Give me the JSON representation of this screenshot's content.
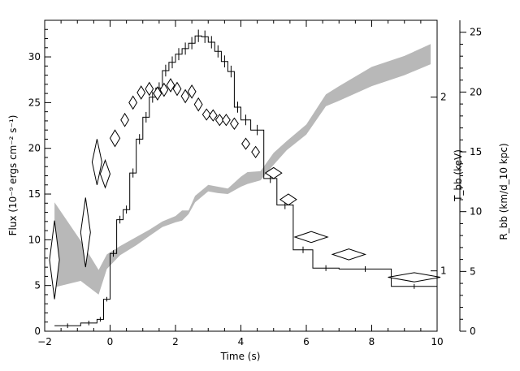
{
  "chart_data": {
    "type": "scatter",
    "xlabel": "Time (s)",
    "ylabel_left": "Flux (10⁻⁹ ergs cm⁻² s⁻¹)",
    "ylabel_right_inner": "T_bb (keV)",
    "ylabel_right_outer": "R_bb (km/d_10 kpc)",
    "xlim": [
      -2,
      10
    ],
    "ylim_left": [
      0,
      34
    ],
    "ylim_right_outer": [
      0,
      26
    ],
    "x_ticks": [
      -2,
      0,
      2,
      4,
      6,
      8,
      10
    ],
    "y_ticks_left": [
      0,
      5,
      10,
      15,
      20,
      25,
      30
    ],
    "y_ticks_right_outer": [
      0,
      5,
      10,
      15,
      20,
      25
    ],
    "y_ticks_right_inner": [
      {
        "label": "1",
        "flux_equiv": 6.6
      },
      {
        "label": "2",
        "flux_equiv": 25.6
      }
    ],
    "flux_histogram": [
      {
        "x0": -1.7,
        "x1": -0.9,
        "y": 0.6
      },
      {
        "x0": -0.9,
        "x1": -0.4,
        "y": 0.9
      },
      {
        "x0": -0.4,
        "x1": -0.2,
        "y": 1.3
      },
      {
        "x0": -0.2,
        "x1": 0.0,
        "y": 3.5
      },
      {
        "x0": 0.0,
        "x1": 0.2,
        "y": 8.5
      },
      {
        "x0": 0.2,
        "x1": 0.4,
        "y": 12.2
      },
      {
        "x0": 0.4,
        "x1": 0.6,
        "y": 13.3
      },
      {
        "x0": 0.6,
        "x1": 0.8,
        "y": 17.3
      },
      {
        "x0": 0.8,
        "x1": 1.0,
        "y": 21.0
      },
      {
        "x0": 1.0,
        "x1": 1.2,
        "y": 23.4
      },
      {
        "x0": 1.2,
        "x1": 1.4,
        "y": 25.6
      },
      {
        "x0": 1.4,
        "x1": 1.6,
        "y": 26.6
      },
      {
        "x0": 1.6,
        "x1": 1.8,
        "y": 28.5
      },
      {
        "x0": 1.8,
        "x1": 2.0,
        "y": 29.4
      },
      {
        "x0": 2.0,
        "x1": 2.2,
        "y": 30.3
      },
      {
        "x0": 2.2,
        "x1": 2.4,
        "y": 30.9
      },
      {
        "x0": 2.4,
        "x1": 2.6,
        "y": 31.5
      },
      {
        "x0": 2.6,
        "x1": 2.8,
        "y": 32.3
      },
      {
        "x0": 2.8,
        "x1": 3.0,
        "y": 32.2
      },
      {
        "x0": 3.0,
        "x1": 3.2,
        "y": 31.6
      },
      {
        "x0": 3.2,
        "x1": 3.4,
        "y": 30.6
      },
      {
        "x0": 3.4,
        "x1": 3.6,
        "y": 29.5
      },
      {
        "x0": 3.6,
        "x1": 3.8,
        "y": 28.4
      },
      {
        "x0": 3.8,
        "x1": 4.0,
        "y": 24.5
      },
      {
        "x0": 4.0,
        "x1": 4.3,
        "y": 23.1
      },
      {
        "x0": 4.3,
        "x1": 4.7,
        "y": 22.0
      },
      {
        "x0": 4.7,
        "x1": 5.1,
        "y": 16.7
      },
      {
        "x0": 5.1,
        "x1": 5.6,
        "y": 13.8
      },
      {
        "x0": 5.6,
        "x1": 6.2,
        "y": 8.9
      },
      {
        "x0": 6.2,
        "x1": 7.0,
        "y": 6.9
      },
      {
        "x0": 7.0,
        "x1": 8.6,
        "y": 6.8
      },
      {
        "x0": 8.6,
        "x1": 10.0,
        "y": 4.9
      }
    ],
    "temperature_points": [
      {
        "x": -1.7,
        "y": 7.8,
        "dx": 0.15,
        "dy": 4.3
      },
      {
        "x": -0.75,
        "y": 10.8,
        "dx": 0.15,
        "dy": 3.8
      },
      {
        "x": -0.4,
        "y": 18.5,
        "dx": 0.15,
        "dy": 2.5
      },
      {
        "x": -0.15,
        "y": 17.2,
        "dx": 0.15,
        "dy": 1.5
      },
      {
        "x": 0.15,
        "y": 21.1,
        "dx": 0.15,
        "dy": 0.9
      },
      {
        "x": 0.45,
        "y": 23.1,
        "dx": 0.12,
        "dy": 0.7
      },
      {
        "x": 0.7,
        "y": 25.0,
        "dx": 0.12,
        "dy": 0.7
      },
      {
        "x": 0.95,
        "y": 26.1,
        "dx": 0.12,
        "dy": 0.7
      },
      {
        "x": 1.2,
        "y": 26.5,
        "dx": 0.12,
        "dy": 0.7
      },
      {
        "x": 1.45,
        "y": 26.0,
        "dx": 0.12,
        "dy": 0.7
      },
      {
        "x": 1.65,
        "y": 26.4,
        "dx": 0.12,
        "dy": 0.7
      },
      {
        "x": 1.85,
        "y": 26.9,
        "dx": 0.12,
        "dy": 0.7
      },
      {
        "x": 2.05,
        "y": 26.5,
        "dx": 0.12,
        "dy": 0.7
      },
      {
        "x": 2.3,
        "y": 25.7,
        "dx": 0.12,
        "dy": 0.7
      },
      {
        "x": 2.5,
        "y": 26.2,
        "dx": 0.12,
        "dy": 0.7
      },
      {
        "x": 2.7,
        "y": 24.8,
        "dx": 0.12,
        "dy": 0.7
      },
      {
        "x": 2.95,
        "y": 23.7,
        "dx": 0.12,
        "dy": 0.6
      },
      {
        "x": 3.15,
        "y": 23.6,
        "dx": 0.12,
        "dy": 0.6
      },
      {
        "x": 3.35,
        "y": 23.1,
        "dx": 0.12,
        "dy": 0.6
      },
      {
        "x": 3.55,
        "y": 23.1,
        "dx": 0.12,
        "dy": 0.6
      },
      {
        "x": 3.8,
        "y": 22.7,
        "dx": 0.12,
        "dy": 0.6
      },
      {
        "x": 4.15,
        "y": 20.5,
        "dx": 0.12,
        "dy": 0.6
      },
      {
        "x": 4.45,
        "y": 19.6,
        "dx": 0.12,
        "dy": 0.6
      },
      {
        "x": 5.0,
        "y": 17.3,
        "dx": 0.25,
        "dy": 0.6
      },
      {
        "x": 5.45,
        "y": 14.4,
        "dx": 0.25,
        "dy": 0.6
      },
      {
        "x": 6.15,
        "y": 10.3,
        "dx": 0.5,
        "dy": 0.6
      },
      {
        "x": 7.3,
        "y": 8.4,
        "dx": 0.5,
        "dy": 0.6
      },
      {
        "x": 9.3,
        "y": 5.9,
        "dx": 0.8,
        "dy": 0.5
      }
    ],
    "radius_band": [
      {
        "x": -1.7,
        "lo": 4.8,
        "hi": 14.1
      },
      {
        "x": -0.9,
        "lo": 5.5,
        "hi": 9.9
      },
      {
        "x": -0.35,
        "lo": 4.0,
        "hi": 6.7
      },
      {
        "x": -0.1,
        "lo": 6.8,
        "hi": 8.4
      },
      {
        "x": 0.3,
        "lo": 8.3,
        "hi": 9.3
      },
      {
        "x": 0.8,
        "lo": 9.4,
        "hi": 10.3
      },
      {
        "x": 1.2,
        "lo": 10.4,
        "hi": 11.1
      },
      {
        "x": 1.6,
        "lo": 11.4,
        "hi": 12.0
      },
      {
        "x": 2.0,
        "lo": 11.9,
        "hi": 12.6
      },
      {
        "x": 2.2,
        "lo": 12.1,
        "hi": 13.2
      },
      {
        "x": 2.4,
        "lo": 12.8,
        "hi": 13.2
      },
      {
        "x": 2.6,
        "lo": 14.1,
        "hi": 14.8
      },
      {
        "x": 3.0,
        "lo": 15.3,
        "hi": 16.0
      },
      {
        "x": 3.3,
        "lo": 15.1,
        "hi": 15.8
      },
      {
        "x": 3.6,
        "lo": 15.0,
        "hi": 15.6
      },
      {
        "x": 4.0,
        "lo": 15.8,
        "hi": 16.9
      },
      {
        "x": 4.2,
        "lo": 16.1,
        "hi": 17.4
      },
      {
        "x": 4.6,
        "lo": 16.5,
        "hi": 17.5
      },
      {
        "x": 5.0,
        "lo": 18.2,
        "hi": 19.5
      },
      {
        "x": 5.4,
        "lo": 19.8,
        "hi": 20.8
      },
      {
        "x": 6.0,
        "lo": 21.5,
        "hi": 22.6
      },
      {
        "x": 6.6,
        "lo": 24.6,
        "hi": 25.9
      },
      {
        "x": 7.0,
        "lo": 25.2,
        "hi": 26.8
      },
      {
        "x": 8.0,
        "lo": 26.8,
        "hi": 28.9
      },
      {
        "x": 9.0,
        "lo": 28.0,
        "hi": 30.1
      },
      {
        "x": 9.8,
        "lo": 29.2,
        "hi": 31.4
      }
    ],
    "band_color": "#b8b8b8",
    "line_color": "#000000"
  }
}
